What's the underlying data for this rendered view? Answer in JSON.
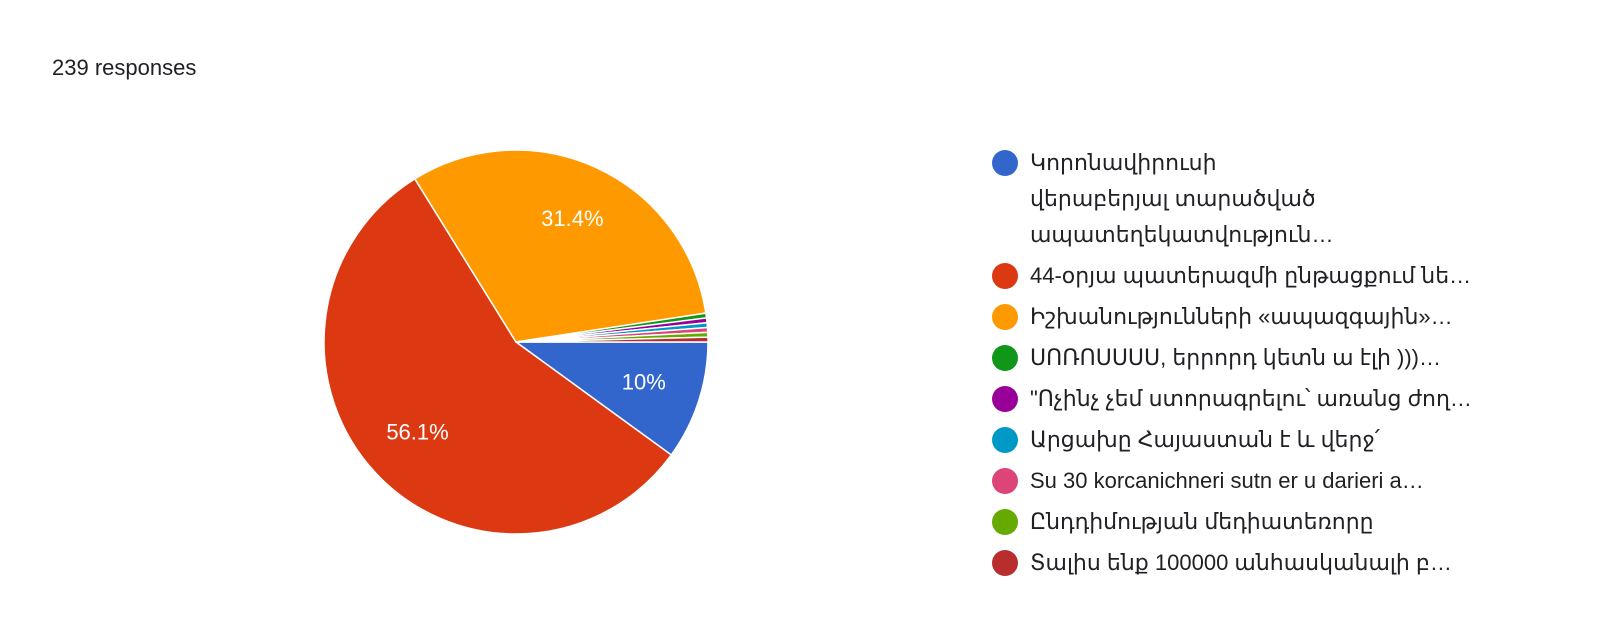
{
  "chart_data": {
    "type": "pie",
    "subtitle": "239 responses",
    "categories": [
      "Կորոնավիրուսի վերաբերյալ տարածված ապատեղեկատվություն…",
      "44-օրյա պատերազմի ընթացքում նե…",
      "Իշխանությունների «ապազգային»…",
      "ՍՈՌՈՍՍՍՍ, երրորդ կետն ա էլի )))…",
      "\"Ոչինչ չեմ ստորագրելու՝ առանց ժող…",
      "Արցախը Հայաստան է և վերջ՛",
      "Su 30 korcanichneri sutn er u darieri a…",
      "Ընդդիմության մեդիատեռորը",
      "Տալիս ենք 100000 անհասկանալի բ…"
    ],
    "values": [
      10,
      56.1,
      31.4,
      0.4,
      0.4,
      0.4,
      0.4,
      0.4,
      0.4
    ],
    "value_labels": [
      "10%",
      "56.1%",
      "31.4%",
      null,
      null,
      null,
      null,
      null,
      null
    ],
    "colors": [
      "#3366cc",
      "#dc3912",
      "#ff9900",
      "#109618",
      "#990099",
      "#0099c6",
      "#dd4477",
      "#66aa00",
      "#b82e2e"
    ]
  }
}
